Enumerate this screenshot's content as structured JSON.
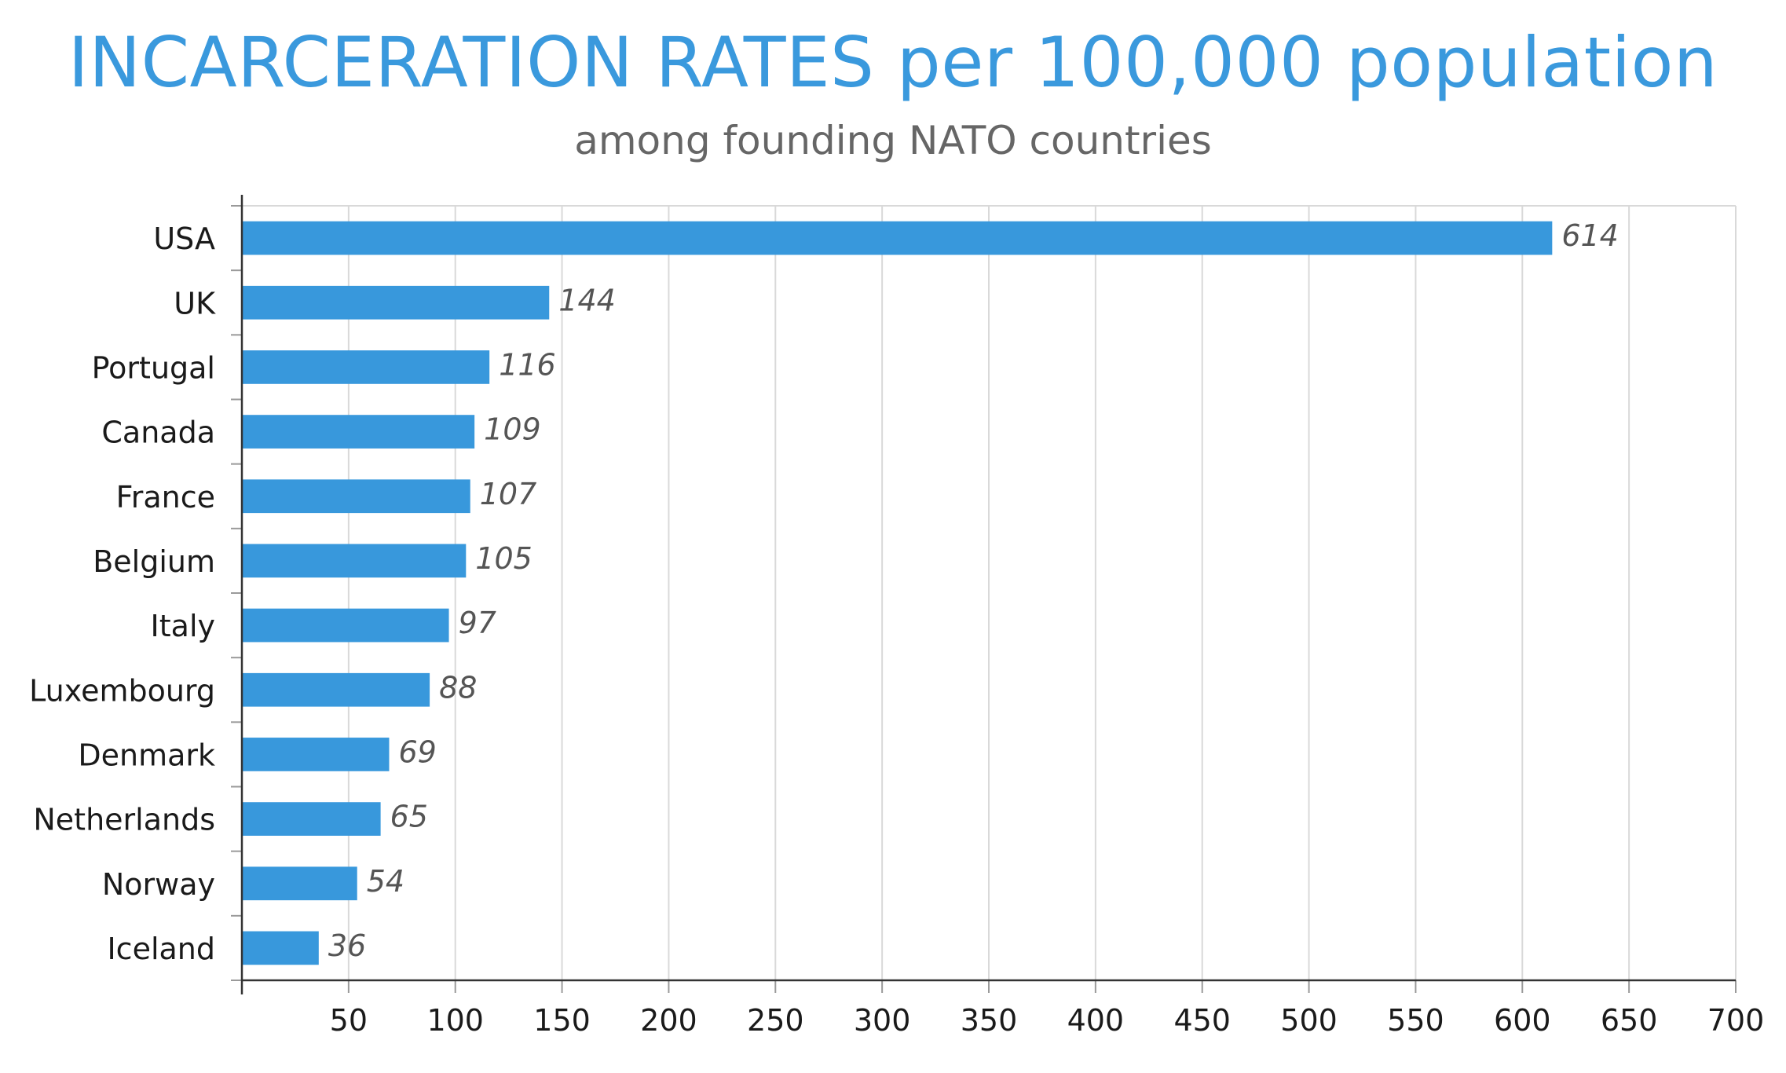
{
  "colors": {
    "title": "#3a99dd",
    "subtitle": "#666666",
    "bar": "#3898dc"
  },
  "chart_data": {
    "type": "bar",
    "orientation": "horizontal",
    "title": "INCARCERATION RATES per 100,000 population",
    "subtitle": "among founding NATO countries",
    "xlabel": "",
    "ylabel": "",
    "categories": [
      "USA",
      "UK",
      "Portugal",
      "Canada",
      "France",
      "Belgium",
      "Italy",
      "Luxembourg",
      "Denmark",
      "Netherlands",
      "Norway",
      "Iceland"
    ],
    "values": [
      614,
      144,
      116,
      109,
      107,
      105,
      97,
      88,
      69,
      65,
      54,
      36
    ],
    "xlim": [
      0,
      700
    ],
    "x_ticks": [
      50,
      100,
      150,
      200,
      250,
      300,
      350,
      400,
      450,
      500,
      550,
      600,
      650,
      700
    ],
    "data_labels": true,
    "grid": true,
    "legend": "none"
  }
}
